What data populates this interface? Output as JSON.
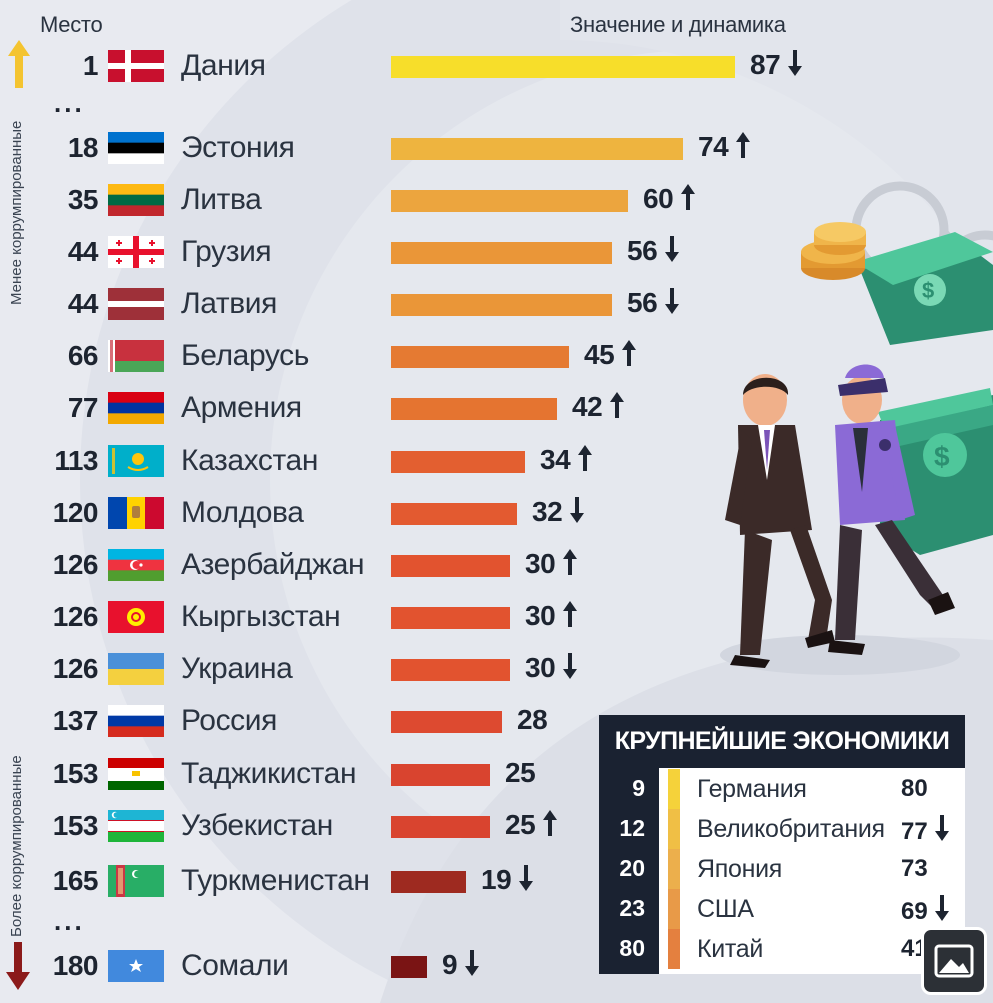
{
  "header": {
    "rank_label": "Место",
    "value_label": "Значение и динамика"
  },
  "side_labels": {
    "less_corrupt": "Менее коррумпированные",
    "more_corrupt": "Более коррумпированные"
  },
  "ellipsis": "...",
  "colors": {
    "background": "#e8eaf0",
    "arrow_up": "#f4c430",
    "arrow_down": "#8b1a1a",
    "panel_dark": "#1a2231"
  },
  "chart_data": [
    {
      "type": "bar",
      "orientation": "horizontal",
      "categories": [
        "Дания",
        "Эстония",
        "Литва",
        "Грузия",
        "Латвия",
        "Беларусь",
        "Армения",
        "Казахстан",
        "Молдова",
        "Азербайджан",
        "Кыргызстан",
        "Украина",
        "Россия",
        "Таджикистан",
        "Узбекистан",
        "Туркменистан",
        "Сомали"
      ],
      "ranks": [
        "1",
        "18",
        "35",
        "44",
        "44",
        "66",
        "77",
        "113",
        "120",
        "126",
        "126",
        "126",
        "137",
        "153",
        "153",
        "165",
        "180"
      ],
      "values": [
        87,
        74,
        60,
        56,
        56,
        45,
        42,
        34,
        32,
        30,
        30,
        30,
        28,
        25,
        25,
        19,
        9
      ],
      "trend": [
        "down",
        "up",
        "up",
        "down",
        "down",
        "up",
        "up",
        "up",
        "down",
        "up",
        "up",
        "down",
        "none",
        "none",
        "up",
        "down",
        "down"
      ],
      "flags": [
        "denmark",
        "estonia",
        "lithuania",
        "georgia",
        "latvia",
        "belarus",
        "armenia",
        "kazakhstan",
        "moldova",
        "azerbaijan",
        "kyrgyzstan",
        "ukraine",
        "russia",
        "tajikistan",
        "uzbekistan",
        "turkmenistan",
        "somalia"
      ],
      "gap_after_index": [
        0,
        15
      ]
    },
    {
      "type": "table",
      "title": "КРУПНЕЙШИЕ ЭКОНОМИКИ",
      "ranks": [
        "9",
        "12",
        "20",
        "23",
        "80"
      ],
      "categories": [
        "Германия",
        "Великобритания",
        "Япония",
        "США",
        "Китай"
      ],
      "values": [
        80,
        77,
        73,
        69,
        41
      ],
      "trend": [
        "none",
        "down",
        "none",
        "down",
        "none"
      ],
      "strip_colors": [
        "#f5d23a",
        "#f0bf45",
        "#ecaf4c",
        "#e89a48",
        "#e4803f"
      ]
    }
  ],
  "image_button": {
    "icon": "image-icon"
  }
}
